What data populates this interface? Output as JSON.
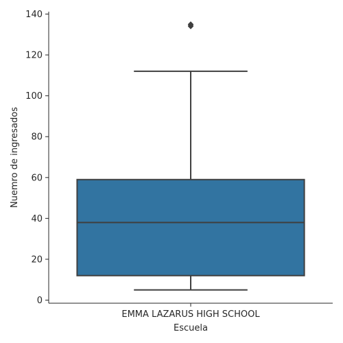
{
  "chart_data": {
    "type": "box",
    "title": "",
    "xlabel": "Escuela",
    "ylabel": "Nuemro de ingresados",
    "ylim": [
      0,
      141
    ],
    "yticks": [
      0,
      20,
      40,
      60,
      80,
      100,
      120,
      140
    ],
    "grid": false,
    "categories": [
      "EMMA LAZARUS HIGH SCHOOL"
    ],
    "boxes": [
      {
        "category": "EMMA LAZARUS HIGH SCHOOL",
        "whisker_low": 5,
        "q1": 12,
        "median": 38,
        "q3": 59,
        "whisker_high": 112,
        "outliers": [
          134,
          134.5,
          135
        ]
      }
    ],
    "colors": {
      "box": "#3274a1",
      "line": "#3f3f3f",
      "axis": "#262626"
    }
  }
}
